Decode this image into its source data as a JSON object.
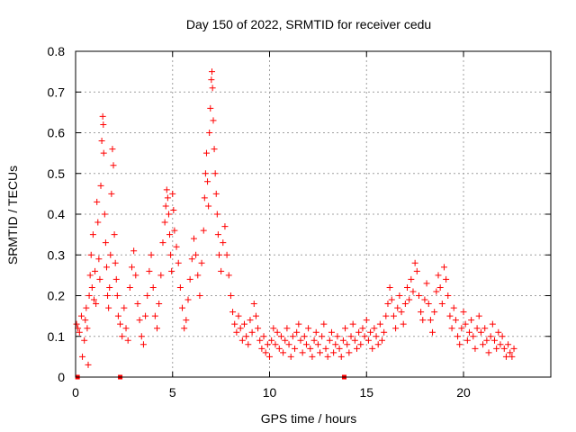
{
  "chart_data": {
    "type": "scatter",
    "title": "Day 150 of 2022, SRMTID for receiver cedu",
    "xlabel": "GPS time / hours",
    "ylabel": "SRMTID / TECUs",
    "xlim": [
      0,
      24.5
    ],
    "ylim": [
      0,
      0.8
    ],
    "xticks": [
      0,
      5,
      10,
      15,
      20
    ],
    "yticks": [
      0,
      0.1,
      0.2,
      0.3,
      0.4,
      0.5,
      0.6,
      0.7,
      0.8
    ],
    "grid": true,
    "marker": "+",
    "series": [
      {
        "name": "SRMTID",
        "color": "#ff0000",
        "points": [
          [
            0.05,
            0.13
          ],
          [
            0.12,
            0.12
          ],
          [
            0.2,
            0.11
          ],
          [
            0.3,
            0.15
          ],
          [
            0.35,
            0.05
          ],
          [
            0.45,
            0.09
          ],
          [
            0.5,
            0.14
          ],
          [
            0.55,
            0.17
          ],
          [
            0.6,
            0.12
          ],
          [
            0.65,
            0.03
          ],
          [
            0.7,
            0.2
          ],
          [
            0.75,
            0.25
          ],
          [
            0.8,
            0.3
          ],
          [
            0.85,
            0.22
          ],
          [
            0.9,
            0.35
          ],
          [
            0.95,
            0.19
          ],
          [
            1.0,
            0.26
          ],
          [
            1.05,
            0.18
          ],
          [
            1.1,
            0.43
          ],
          [
            1.15,
            0.38
          ],
          [
            1.2,
            0.29
          ],
          [
            1.25,
            0.24
          ],
          [
            1.3,
            0.47
          ],
          [
            1.35,
            0.58
          ],
          [
            1.4,
            0.64
          ],
          [
            1.43,
            0.62
          ],
          [
            1.45,
            0.55
          ],
          [
            1.5,
            0.4
          ],
          [
            1.55,
            0.33
          ],
          [
            1.6,
            0.27
          ],
          [
            1.65,
            0.2
          ],
          [
            1.7,
            0.17
          ],
          [
            1.75,
            0.22
          ],
          [
            1.8,
            0.3
          ],
          [
            1.85,
            0.45
          ],
          [
            1.9,
            0.56
          ],
          [
            1.95,
            0.52
          ],
          [
            2.0,
            0.35
          ],
          [
            2.05,
            0.28
          ],
          [
            2.1,
            0.24
          ],
          [
            2.15,
            0.2
          ],
          [
            2.2,
            0.15
          ],
          [
            2.3,
            0.13
          ],
          [
            2.4,
            0.1
          ],
          [
            2.5,
            0.17
          ],
          [
            2.6,
            0.12
          ],
          [
            2.7,
            0.09
          ],
          [
            2.8,
            0.22
          ],
          [
            2.9,
            0.27
          ],
          [
            3.0,
            0.31
          ],
          [
            3.1,
            0.25
          ],
          [
            3.2,
            0.18
          ],
          [
            3.3,
            0.14
          ],
          [
            3.4,
            0.1
          ],
          [
            3.5,
            0.08
          ],
          [
            3.6,
            0.15
          ],
          [
            3.7,
            0.2
          ],
          [
            3.8,
            0.26
          ],
          [
            3.9,
            0.3
          ],
          [
            4.0,
            0.22
          ],
          [
            4.1,
            0.15
          ],
          [
            4.2,
            0.12
          ],
          [
            4.3,
            0.18
          ],
          [
            4.4,
            0.25
          ],
          [
            4.5,
            0.33
          ],
          [
            4.6,
            0.38
          ],
          [
            4.65,
            0.42
          ],
          [
            4.7,
            0.46
          ],
          [
            4.75,
            0.44
          ],
          [
            4.8,
            0.4
          ],
          [
            4.85,
            0.35
          ],
          [
            4.9,
            0.3
          ],
          [
            4.95,
            0.26
          ],
          [
            5.0,
            0.45
          ],
          [
            5.05,
            0.41
          ],
          [
            5.1,
            0.36
          ],
          [
            5.2,
            0.32
          ],
          [
            5.3,
            0.28
          ],
          [
            5.4,
            0.22
          ],
          [
            5.5,
            0.17
          ],
          [
            5.6,
            0.12
          ],
          [
            5.7,
            0.14
          ],
          [
            5.8,
            0.19
          ],
          [
            5.9,
            0.24
          ],
          [
            6.0,
            0.29
          ],
          [
            6.1,
            0.34
          ],
          [
            6.2,
            0.3
          ],
          [
            6.3,
            0.25
          ],
          [
            6.4,
            0.2
          ],
          [
            6.5,
            0.28
          ],
          [
            6.6,
            0.36
          ],
          [
            6.65,
            0.44
          ],
          [
            6.7,
            0.5
          ],
          [
            6.75,
            0.55
          ],
          [
            6.8,
            0.48
          ],
          [
            6.85,
            0.42
          ],
          [
            6.9,
            0.6
          ],
          [
            6.95,
            0.66
          ],
          [
            7.0,
            0.73
          ],
          [
            7.03,
            0.75
          ],
          [
            7.06,
            0.71
          ],
          [
            7.1,
            0.63
          ],
          [
            7.15,
            0.56
          ],
          [
            7.2,
            0.5
          ],
          [
            7.25,
            0.45
          ],
          [
            7.3,
            0.4
          ],
          [
            7.35,
            0.35
          ],
          [
            7.4,
            0.3
          ],
          [
            7.5,
            0.26
          ],
          [
            7.6,
            0.33
          ],
          [
            7.7,
            0.37
          ],
          [
            7.8,
            0.3
          ],
          [
            7.9,
            0.25
          ],
          [
            8.0,
            0.2
          ],
          [
            8.1,
            0.16
          ],
          [
            8.2,
            0.13
          ],
          [
            8.3,
            0.11
          ],
          [
            8.4,
            0.15
          ],
          [
            8.5,
            0.12
          ],
          [
            8.6,
            0.09
          ],
          [
            8.7,
            0.13
          ],
          [
            8.8,
            0.1
          ],
          [
            8.9,
            0.08
          ],
          [
            9.0,
            0.14
          ],
          [
            9.1,
            0.11
          ],
          [
            9.2,
            0.18
          ],
          [
            9.3,
            0.15
          ],
          [
            9.4,
            0.12
          ],
          [
            9.5,
            0.09
          ],
          [
            9.6,
            0.07
          ],
          [
            9.7,
            0.1
          ],
          [
            9.8,
            0.06
          ],
          [
            9.9,
            0.08
          ],
          [
            10.0,
            0.05
          ],
          [
            10.1,
            0.09
          ],
          [
            10.2,
            0.12
          ],
          [
            10.3,
            0.08
          ],
          [
            10.4,
            0.11
          ],
          [
            10.5,
            0.07
          ],
          [
            10.6,
            0.1
          ],
          [
            10.7,
            0.06
          ],
          [
            10.8,
            0.09
          ],
          [
            10.9,
            0.12
          ],
          [
            11.0,
            0.08
          ],
          [
            11.1,
            0.05
          ],
          [
            11.2,
            0.1
          ],
          [
            11.3,
            0.07
          ],
          [
            11.4,
            0.11
          ],
          [
            11.5,
            0.13
          ],
          [
            11.6,
            0.09
          ],
          [
            11.7,
            0.06
          ],
          [
            11.8,
            0.1
          ],
          [
            11.9,
            0.08
          ],
          [
            12.0,
            0.12
          ],
          [
            12.1,
            0.07
          ],
          [
            12.2,
            0.05
          ],
          [
            12.3,
            0.09
          ],
          [
            12.4,
            0.11
          ],
          [
            12.5,
            0.08
          ],
          [
            12.6,
            0.06
          ],
          [
            12.7,
            0.1
          ],
          [
            12.8,
            0.13
          ],
          [
            12.9,
            0.07
          ],
          [
            13.0,
            0.05
          ],
          [
            13.1,
            0.09
          ],
          [
            13.2,
            0.11
          ],
          [
            13.3,
            0.06
          ],
          [
            13.4,
            0.08
          ],
          [
            13.5,
            0.1
          ],
          [
            13.6,
            0.07
          ],
          [
            13.7,
            0.05
          ],
          [
            13.8,
            0.09
          ],
          [
            13.9,
            0.12
          ],
          [
            14.0,
            0.08
          ],
          [
            14.1,
            0.06
          ],
          [
            14.2,
            0.1
          ],
          [
            14.3,
            0.13
          ],
          [
            14.4,
            0.09
          ],
          [
            14.5,
            0.07
          ],
          [
            14.6,
            0.11
          ],
          [
            14.7,
            0.08
          ],
          [
            14.8,
            0.12
          ],
          [
            14.9,
            0.1
          ],
          [
            15.0,
            0.14
          ],
          [
            15.1,
            0.09
          ],
          [
            15.2,
            0.11
          ],
          [
            15.3,
            0.07
          ],
          [
            15.4,
            0.12
          ],
          [
            15.5,
            0.1
          ],
          [
            15.6,
            0.08
          ],
          [
            15.7,
            0.13
          ],
          [
            15.8,
            0.09
          ],
          [
            15.9,
            0.11
          ],
          [
            16.0,
            0.15
          ],
          [
            16.1,
            0.18
          ],
          [
            16.2,
            0.22
          ],
          [
            16.3,
            0.19
          ],
          [
            16.4,
            0.15
          ],
          [
            16.5,
            0.12
          ],
          [
            16.6,
            0.17
          ],
          [
            16.7,
            0.2
          ],
          [
            16.8,
            0.16
          ],
          [
            16.9,
            0.13
          ],
          [
            17.0,
            0.18
          ],
          [
            17.1,
            0.22
          ],
          [
            17.2,
            0.19
          ],
          [
            17.3,
            0.24
          ],
          [
            17.4,
            0.21
          ],
          [
            17.5,
            0.28
          ],
          [
            17.6,
            0.26
          ],
          [
            17.7,
            0.2
          ],
          [
            17.8,
            0.16
          ],
          [
            17.9,
            0.14
          ],
          [
            18.0,
            0.19
          ],
          [
            18.1,
            0.23
          ],
          [
            18.2,
            0.18
          ],
          [
            18.3,
            0.14
          ],
          [
            18.4,
            0.11
          ],
          [
            18.5,
            0.16
          ],
          [
            18.6,
            0.21
          ],
          [
            18.7,
            0.25
          ],
          [
            18.8,
            0.22
          ],
          [
            18.9,
            0.18
          ],
          [
            19.0,
            0.27
          ],
          [
            19.1,
            0.24
          ],
          [
            19.2,
            0.2
          ],
          [
            19.3,
            0.15
          ],
          [
            19.4,
            0.12
          ],
          [
            19.5,
            0.17
          ],
          [
            19.6,
            0.14
          ],
          [
            19.7,
            0.1
          ],
          [
            19.8,
            0.08
          ],
          [
            19.9,
            0.12
          ],
          [
            20.0,
            0.16
          ],
          [
            20.1,
            0.13
          ],
          [
            20.2,
            0.09
          ],
          [
            20.3,
            0.11
          ],
          [
            20.4,
            0.14
          ],
          [
            20.5,
            0.1
          ],
          [
            20.6,
            0.07
          ],
          [
            20.7,
            0.12
          ],
          [
            20.8,
            0.15
          ],
          [
            20.9,
            0.11
          ],
          [
            21.0,
            0.08
          ],
          [
            21.1,
            0.12
          ],
          [
            21.2,
            0.09
          ],
          [
            21.3,
            0.06
          ],
          [
            21.4,
            0.1
          ],
          [
            21.5,
            0.13
          ],
          [
            21.6,
            0.09
          ],
          [
            21.7,
            0.07
          ],
          [
            21.8,
            0.11
          ],
          [
            21.9,
            0.08
          ],
          [
            22.0,
            0.1
          ],
          [
            22.1,
            0.07
          ],
          [
            22.2,
            0.05
          ],
          [
            22.3,
            0.08
          ],
          [
            22.4,
            0.06
          ],
          [
            22.5,
            0.05
          ],
          [
            22.6,
            0.07
          ]
        ]
      }
    ],
    "gap_markers": [
      [
        0.1,
        0.0
      ],
      [
        2.3,
        0.0
      ],
      [
        13.85,
        0.0
      ]
    ]
  }
}
